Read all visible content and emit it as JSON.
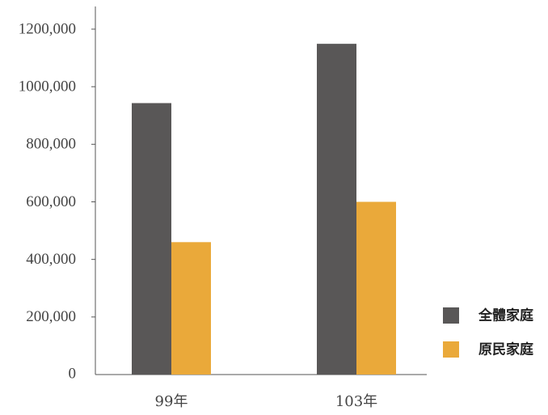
{
  "chart_data": {
    "type": "bar",
    "title": "",
    "xlabel": "",
    "ylabel": "",
    "categories": [
      "99年",
      "103年"
    ],
    "series": [
      {
        "name": "全體家庭",
        "values": [
          943000,
          1149000
        ],
        "color": "#595757"
      },
      {
        "name": "原民家庭",
        "values": [
          460000,
          600000
        ],
        "color": "#EAA93A"
      }
    ],
    "ylim": [
      0,
      1200000
    ],
    "yticks": [
      0,
      200000,
      400000,
      600000,
      800000,
      1000000,
      1200000
    ],
    "ytick_labels": [
      "0",
      "200,000",
      "400,000",
      "600,000",
      "800,000",
      "1000,000",
      "1200,000"
    ],
    "grid": false,
    "legend_position": "bottom-right"
  }
}
